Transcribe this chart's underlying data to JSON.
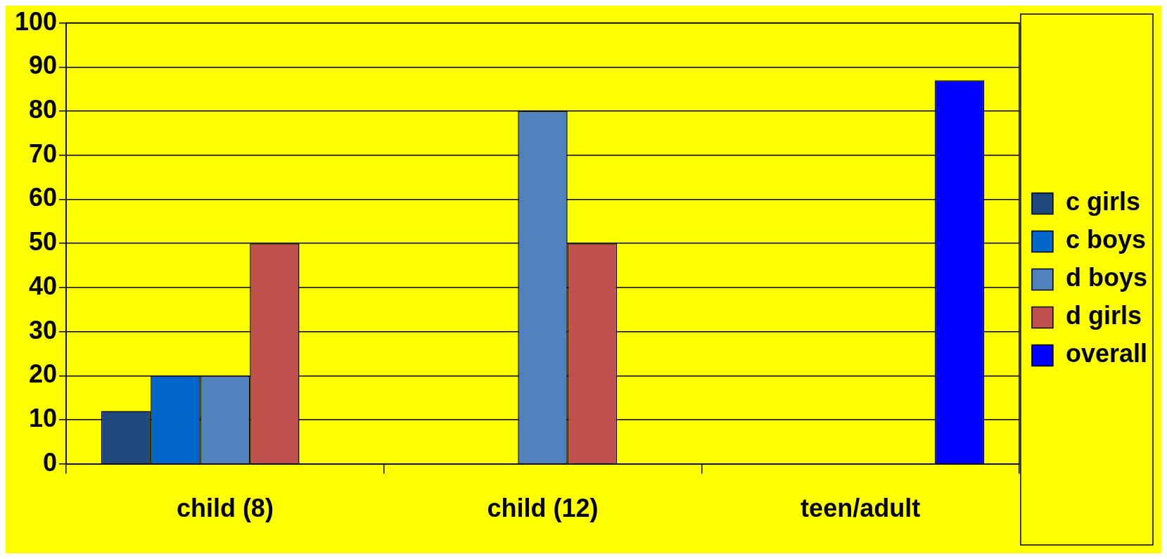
{
  "chart_data": {
    "type": "bar",
    "categories": [
      "child (8)",
      "child (12)",
      "teen/adult"
    ],
    "series": [
      {
        "name": "c girls",
        "color": "#1f497d",
        "values": [
          12,
          null,
          null
        ]
      },
      {
        "name": "c boys",
        "color": "#0066cc",
        "values": [
          20,
          null,
          null
        ]
      },
      {
        "name": "d boys",
        "color": "#4f81bd",
        "values": [
          20,
          80,
          null
        ]
      },
      {
        "name": "d girls",
        "color": "#c0504d",
        "values": [
          50,
          50,
          null
        ]
      },
      {
        "name": "overall",
        "color": "#0000ff",
        "values": [
          null,
          null,
          87
        ]
      }
    ],
    "ylim": [
      0,
      100
    ],
    "yticks": [
      0,
      10,
      20,
      30,
      40,
      50,
      60,
      70,
      80,
      90,
      100
    ],
    "grid": "y",
    "legend": "right"
  }
}
